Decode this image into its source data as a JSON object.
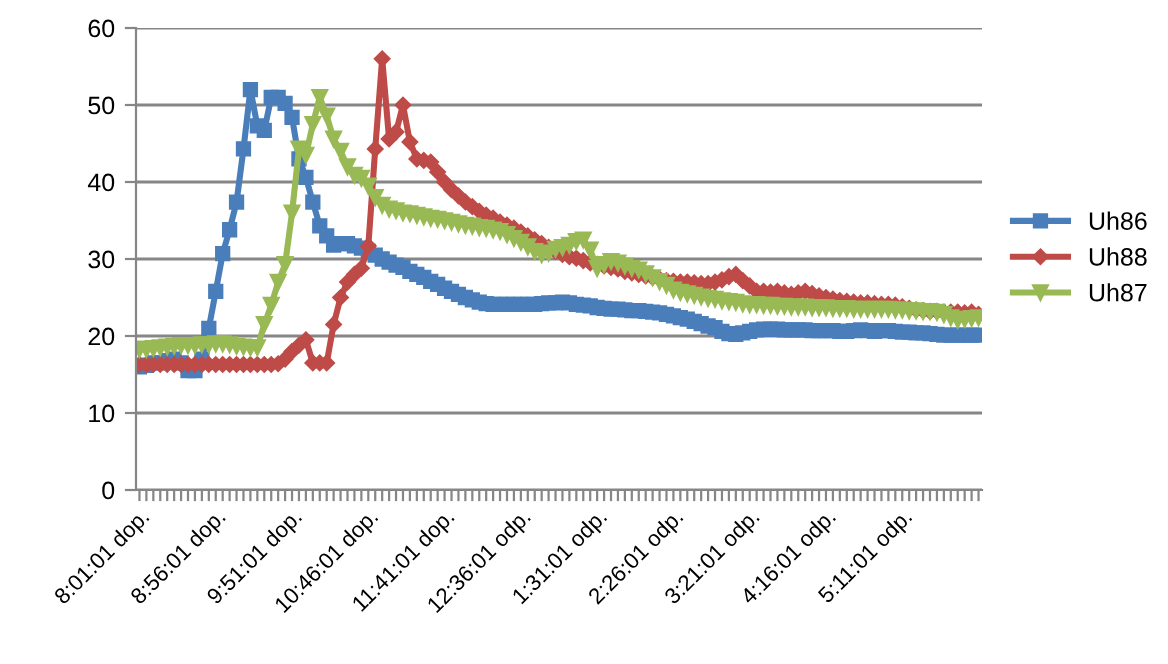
{
  "chart_data": {
    "type": "line",
    "categories": [
      "8:01:01 dop.",
      null,
      null,
      null,
      null,
      null,
      null,
      null,
      null,
      null,
      null,
      "8:56:01 dop.",
      null,
      null,
      null,
      null,
      null,
      null,
      null,
      null,
      null,
      null,
      "9:51:01 dop.",
      null,
      null,
      null,
      null,
      null,
      null,
      null,
      null,
      null,
      null,
      "10:46:01 dop.",
      null,
      null,
      null,
      null,
      null,
      null,
      null,
      null,
      null,
      null,
      "11:41:01 dop.",
      null,
      null,
      null,
      null,
      null,
      null,
      null,
      null,
      null,
      null,
      "12:36:01 odp.",
      null,
      null,
      null,
      null,
      null,
      null,
      null,
      null,
      null,
      null,
      "1:31:01 odp.",
      null,
      null,
      null,
      null,
      null,
      null,
      null,
      null,
      null,
      null,
      "2:26:01 odp.",
      null,
      null,
      null,
      null,
      null,
      null,
      null,
      null,
      null,
      null,
      "3:21:01 odp.",
      null,
      null,
      null,
      null,
      null,
      null,
      null,
      null,
      null,
      null,
      "4:16:01 odp.",
      null,
      null,
      null,
      null,
      null,
      null,
      null,
      null,
      null,
      null,
      "5:11:01 odp.",
      null,
      null,
      null,
      null,
      null,
      null,
      null,
      null,
      null,
      null,
      null
    ],
    "series": [
      {
        "name": "Uh86",
        "color": "#4a7ebb",
        "marker": "square",
        "values": [
          16,
          16.2,
          16.5,
          16.5,
          16.8,
          17,
          16.5,
          15.5,
          15.5,
          17,
          21,
          25.8,
          30.7,
          33.8,
          37.4,
          44.3,
          52,
          47.3,
          46.7,
          51,
          51,
          50.2,
          48.4,
          43,
          40.6,
          37.4,
          34.3,
          33,
          31.8,
          32,
          32,
          31.7,
          31.4,
          31,
          30.5,
          30,
          29.6,
          29.2,
          28.9,
          28.4,
          28,
          27.6,
          27.1,
          26.7,
          26.2,
          25.8,
          25.4,
          25,
          24.7,
          24.4,
          24.2,
          24.1,
          24.1,
          24.1,
          24.1,
          24.1,
          24.1,
          24.1,
          24.2,
          24.3,
          24.3,
          24.4,
          24.3,
          24.1,
          24,
          23.9,
          23.7,
          23.6,
          23.5,
          23.5,
          23.4,
          23.3,
          23.3,
          23.2,
          23.1,
          23,
          22.8,
          22.6,
          22.4,
          22.2,
          21.9,
          21.6,
          21.3,
          21.1,
          20.6,
          20.3,
          20.2,
          20.4,
          20.6,
          20.8,
          20.9,
          20.9,
          20.9,
          20.8,
          20.8,
          20.8,
          20.8,
          20.7,
          20.7,
          20.7,
          20.7,
          20.6,
          20.6,
          20.7,
          20.8,
          20.7,
          20.6,
          20.7,
          20.7,
          20.6,
          20.5,
          20.5,
          20.4,
          20.4,
          20.3,
          20.2,
          20.1,
          20.1,
          20.1,
          20.1,
          20.1,
          20.1
        ]
      },
      {
        "name": "Uh88",
        "color": "#be4b48",
        "marker": "diamond",
        "values": [
          16.3,
          16.3,
          16.3,
          16.3,
          16.3,
          16.3,
          16.3,
          16.3,
          16.3,
          16.3,
          16.3,
          16.3,
          16.3,
          16.3,
          16.3,
          16.3,
          16.3,
          16.3,
          16.3,
          16.3,
          16.4,
          17,
          18,
          18.8,
          19.5,
          16.5,
          16.5,
          16.5,
          21.5,
          25,
          27,
          28,
          28.8,
          31.7,
          44.3,
          56,
          45.6,
          46.5,
          50,
          45.2,
          43,
          42.8,
          42.6,
          41.3,
          40,
          39,
          38.2,
          37.4,
          36.8,
          36.2,
          35.7,
          35.3,
          34.8,
          34.4,
          34,
          33.5,
          33,
          32.5,
          32,
          31.5,
          31,
          30.6,
          30.3,
          30.1,
          29.8,
          29.5,
          29.3,
          29.1,
          28.9,
          28.7,
          28.4,
          28.2,
          28,
          27.8,
          27.6,
          27.4,
          27.2,
          27.1,
          27,
          27,
          26.9,
          26.8,
          26.8,
          27,
          27.3,
          27.7,
          28,
          27.2,
          26.5,
          25.8,
          25.8,
          25.7,
          25.8,
          25.6,
          25.4,
          25.6,
          25.8,
          25.5,
          25.2,
          25,
          24.8,
          24.6,
          24.5,
          24.4,
          24.3,
          24.3,
          24.2,
          24.1,
          24.1,
          24,
          23.8,
          23.6,
          23.4,
          23.3,
          23.2,
          23.2,
          23.1,
          23.1,
          23.1,
          23,
          23.1,
          22.8
        ]
      },
      {
        "name": "Uh87",
        "color": "#98b954",
        "marker": "triangle",
        "values": [
          18.3,
          18.3,
          18.4,
          18.5,
          18.6,
          18.7,
          18.8,
          18.8,
          18.8,
          18.9,
          18.9,
          19,
          19,
          18.9,
          18.7,
          18.6,
          18.5,
          18.5,
          21.5,
          24,
          27,
          29.3,
          36,
          44.3,
          43.5,
          47.5,
          51,
          48.6,
          45.6,
          44,
          42,
          40.9,
          40.5,
          39.5,
          38,
          37,
          36.5,
          36.3,
          36,
          35.9,
          35.7,
          35.5,
          35.3,
          35.2,
          35,
          34.8,
          34.6,
          34.4,
          34.3,
          34.1,
          34,
          33.8,
          33.6,
          33.2,
          32.7,
          32.2,
          31.6,
          31,
          30.6,
          30.8,
          31.3,
          31.5,
          31.8,
          32.3,
          32.5,
          31.2,
          28.8,
          29.3,
          29.7,
          29.5,
          29.1,
          28.8,
          28.6,
          28.1,
          27.6,
          27.1,
          26.6,
          26,
          25.7,
          25.5,
          25.3,
          25.1,
          24.9,
          24.8,
          24.6,
          24.5,
          24.4,
          24.2,
          24.1,
          24.1,
          24,
          24,
          23.9,
          23.9,
          23.8,
          23.8,
          23.8,
          23.7,
          23.7,
          23.7,
          23.6,
          23.6,
          23.6,
          23.5,
          23.5,
          23.5,
          23.5,
          23.5,
          23.5,
          23.4,
          23.4,
          23.3,
          23.3,
          23.2,
          23.2,
          23.1,
          22.8,
          22.4,
          22.1,
          22.2,
          22.3,
          22.4
        ]
      }
    ],
    "ylim": [
      0,
      60
    ],
    "yticks": [
      0,
      10,
      20,
      30,
      40,
      50,
      60
    ],
    "grid": "y",
    "legend": "right",
    "line_style": "solid"
  }
}
